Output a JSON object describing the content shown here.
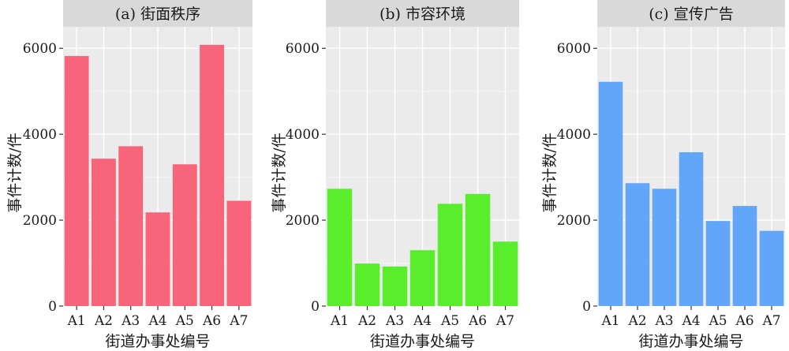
{
  "chart_data": [
    {
      "type": "bar",
      "title": "(a) 街面秩序",
      "xlabel": "街道办事处编号",
      "ylabel": "事件计数/件",
      "categories": [
        "A1",
        "A2",
        "A3",
        "A4",
        "A5",
        "A6",
        "A7"
      ],
      "values": [
        5820,
        3430,
        3720,
        2180,
        3300,
        6080,
        2450
      ],
      "yticks": [
        "0",
        "2000",
        "4000",
        "6000"
      ],
      "ylim": [
        0,
        6500
      ],
      "bar_color": "#f8657b",
      "grid": true
    },
    {
      "type": "bar",
      "title": "(b) 市容环境",
      "xlabel": "街道办事处编号",
      "ylabel": "事件计数/件",
      "categories": [
        "A1",
        "A2",
        "A3",
        "A4",
        "A5",
        "A6",
        "A7"
      ],
      "values": [
        2730,
        990,
        920,
        1300,
        2380,
        2610,
        1500
      ],
      "yticks": [
        "0",
        "2000",
        "4000",
        "6000"
      ],
      "ylim": [
        0,
        6500
      ],
      "bar_color": "#59ed2b",
      "grid": true
    },
    {
      "type": "bar",
      "title": "(c) 宣传广告",
      "xlabel": "街道办事处编号",
      "ylabel": "事件计数/件",
      "categories": [
        "A1",
        "A2",
        "A3",
        "A4",
        "A5",
        "A6",
        "A7"
      ],
      "values": [
        5220,
        2860,
        2730,
        3580,
        1980,
        2330,
        1750
      ],
      "yticks": [
        "0",
        "2000",
        "4000",
        "6000"
      ],
      "ylim": [
        0,
        6500
      ],
      "bar_color": "#62a6f9",
      "grid": true
    }
  ],
  "colors": {
    "panel_bg": "#ebebeb",
    "strip_bg": "#d9d9d9",
    "grid_major": "#ffffff",
    "grid_minor": "#f5f5f5",
    "axis_text": "#1a1a1a"
  }
}
